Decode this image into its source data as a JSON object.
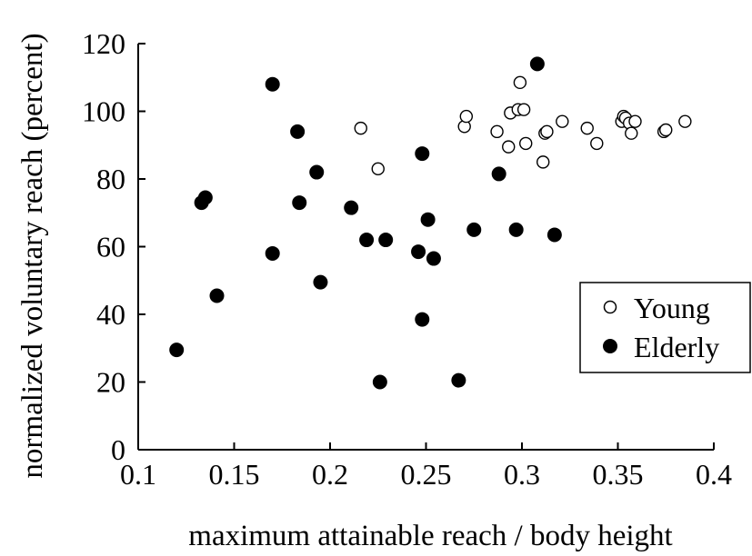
{
  "chart_data": {
    "type": "scatter",
    "xlabel": "maximum attainable reach / body height",
    "ylabel": "normalized voluntary reach (percent)",
    "xlim": [
      0.1,
      0.4
    ],
    "ylim": [
      0,
      120
    ],
    "x_ticks": [
      "0.1",
      "0.15",
      "0.2",
      "0.25",
      "0.3",
      "0.35",
      "0.4"
    ],
    "y_ticks": [
      "0",
      "20",
      "40",
      "60",
      "80",
      "100",
      "120"
    ],
    "grid": false,
    "legend_position": "right",
    "series": [
      {
        "name": "Young",
        "marker": "open-circle",
        "color": "#000000",
        "points": [
          {
            "x": 0.216,
            "y": 95
          },
          {
            "x": 0.225,
            "y": 83
          },
          {
            "x": 0.27,
            "y": 95.5
          },
          {
            "x": 0.271,
            "y": 98.5
          },
          {
            "x": 0.287,
            "y": 94
          },
          {
            "x": 0.293,
            "y": 89.5
          },
          {
            "x": 0.294,
            "y": 99.5
          },
          {
            "x": 0.298,
            "y": 100.5
          },
          {
            "x": 0.299,
            "y": 108.5
          },
          {
            "x": 0.301,
            "y": 100.5
          },
          {
            "x": 0.302,
            "y": 90.5
          },
          {
            "x": 0.311,
            "y": 85
          },
          {
            "x": 0.312,
            "y": 93.5
          },
          {
            "x": 0.313,
            "y": 94
          },
          {
            "x": 0.321,
            "y": 97
          },
          {
            "x": 0.334,
            "y": 95
          },
          {
            "x": 0.339,
            "y": 90.5
          },
          {
            "x": 0.352,
            "y": 97
          },
          {
            "x": 0.353,
            "y": 98.5
          },
          {
            "x": 0.354,
            "y": 98
          },
          {
            "x": 0.356,
            "y": 96.5
          },
          {
            "x": 0.357,
            "y": 93.5
          },
          {
            "x": 0.359,
            "y": 97
          },
          {
            "x": 0.374,
            "y": 94
          },
          {
            "x": 0.375,
            "y": 94.5
          },
          {
            "x": 0.385,
            "y": 97
          }
        ]
      },
      {
        "name": "Elderly",
        "marker": "filled-circle",
        "color": "#000000",
        "points": [
          {
            "x": 0.12,
            "y": 29.5
          },
          {
            "x": 0.133,
            "y": 73
          },
          {
            "x": 0.135,
            "y": 74.5
          },
          {
            "x": 0.141,
            "y": 45.5
          },
          {
            "x": 0.17,
            "y": 108
          },
          {
            "x": 0.17,
            "y": 58
          },
          {
            "x": 0.183,
            "y": 94
          },
          {
            "x": 0.184,
            "y": 73
          },
          {
            "x": 0.193,
            "y": 82
          },
          {
            "x": 0.195,
            "y": 49.5
          },
          {
            "x": 0.211,
            "y": 71.5
          },
          {
            "x": 0.219,
            "y": 62
          },
          {
            "x": 0.226,
            "y": 20
          },
          {
            "x": 0.229,
            "y": 62
          },
          {
            "x": 0.246,
            "y": 58.5
          },
          {
            "x": 0.248,
            "y": 87.5
          },
          {
            "x": 0.248,
            "y": 38.5
          },
          {
            "x": 0.251,
            "y": 68
          },
          {
            "x": 0.254,
            "y": 56.5
          },
          {
            "x": 0.267,
            "y": 20.5
          },
          {
            "x": 0.275,
            "y": 65
          },
          {
            "x": 0.288,
            "y": 81.5
          },
          {
            "x": 0.297,
            "y": 65
          },
          {
            "x": 0.308,
            "y": 114
          },
          {
            "x": 0.317,
            "y": 63.5
          }
        ]
      }
    ]
  }
}
